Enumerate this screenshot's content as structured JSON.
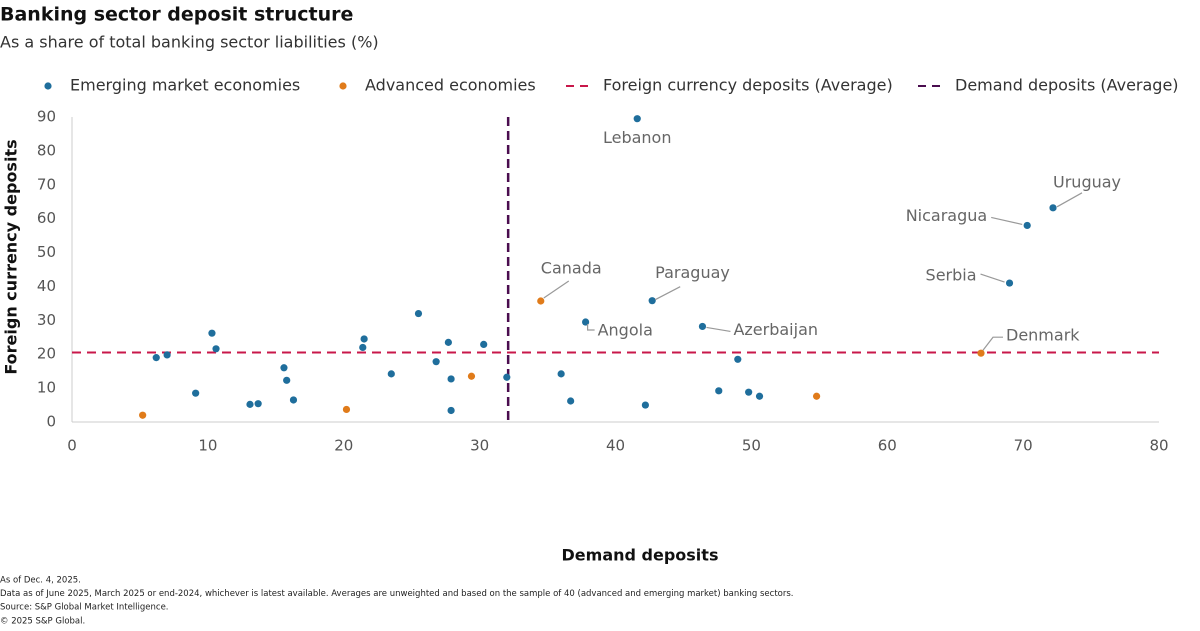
{
  "chart_data": {
    "type": "scatter",
    "title": "Banking sector deposit structure",
    "subtitle": "As a share of total banking sector liabilities (%)",
    "x_label": "Demand deposits",
    "y_label": "Foreign currency deposits",
    "xlim": [
      0,
      80
    ],
    "xticks": [
      0,
      10,
      20,
      30,
      40,
      50,
      60,
      70,
      80
    ],
    "ylim": [
      0,
      90
    ],
    "yticks": [
      0,
      10,
      20,
      30,
      40,
      50,
      60,
      70,
      80,
      90
    ],
    "grid": false,
    "series": [
      {
        "name": "Emerging market economies",
        "color": "#1f6e9c",
        "x": [
          6.2,
          7,
          9.1,
          10.3,
          10.6,
          13.1,
          13.7,
          15.6,
          15.8,
          16.3,
          21.4,
          21.5,
          23.5,
          25.5,
          26.8,
          27.7,
          27.9,
          27.9,
          30.3,
          32,
          41.6,
          37.8,
          42.7,
          46.4,
          36,
          36.7,
          42.2,
          47.6,
          49,
          49.8,
          50.6,
          70.3,
          72.2,
          69
        ],
        "values": [
          19,
          19.8,
          8.5,
          26.2,
          21.6,
          5.2,
          5.4,
          16,
          12.3,
          6.5,
          22,
          24.5,
          14.2,
          32,
          17.8,
          23.5,
          12.7,
          3.4,
          22.9,
          13.2,
          89.5,
          29.5,
          35.8,
          28.2,
          14.2,
          6.2,
          5,
          9.2,
          18.5,
          8.8,
          7.6,
          58,
          63.2,
          41
        ],
        "labels": [
          null,
          null,
          null,
          null,
          null,
          null,
          null,
          null,
          null,
          null,
          null,
          null,
          null,
          null,
          null,
          null,
          null,
          null,
          null,
          null,
          "Lebanon",
          "Angola",
          "Paraguay",
          "Azerbaijan",
          null,
          null,
          null,
          null,
          null,
          null,
          null,
          "Nicaragua",
          "Uruguay",
          "Serbia"
        ]
      },
      {
        "name": "Advanced economies",
        "color": "#e07b1a",
        "x": [
          5.2,
          20.2,
          29.4,
          34.5,
          54.8,
          66.9
        ],
        "values": [
          2,
          3.7,
          13.5,
          35.7,
          7.6,
          20.3
        ],
        "labels": [
          null,
          null,
          null,
          "Canada",
          null,
          "Denmark"
        ]
      }
    ],
    "reference_lines": [
      {
        "name": "Foreign currency deposits (Average)",
        "axis": "y",
        "value": 20.5,
        "color": "#c8174a"
      },
      {
        "name": "Demand deposits (Average)",
        "axis": "x",
        "value": 32.1,
        "color": "#4a0d4f"
      }
    ],
    "notes": [
      "As of Dec. 4, 2025.",
      "Data as of June 2025, March 2025 or end-2024, whichever is latest available. Averages are unweighted and based on the sample of 40 (advanced and emerging market) banking sectors.",
      "Source: S&P Global Market Intelligence.",
      "© 2025 S&P Global."
    ]
  }
}
